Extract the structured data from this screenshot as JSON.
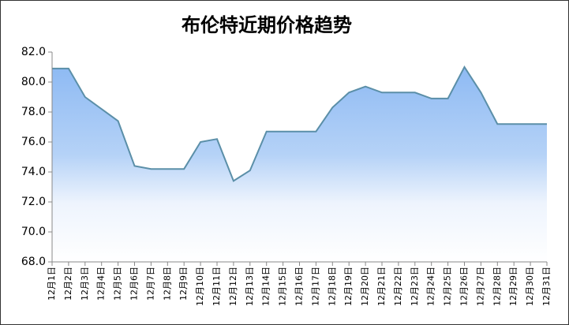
{
  "chart_data": {
    "type": "area",
    "title": "布伦特近期价格趋势",
    "categories": [
      "12月1日",
      "12月2日",
      "12月3日",
      "12月4日",
      "12月5日",
      "12月6日",
      "12月7日",
      "12月8日",
      "12月9日",
      "12月10日",
      "12月11日",
      "12月12日",
      "12月13日",
      "12月14日",
      "12月15日",
      "12月16日",
      "12月17日",
      "12月18日",
      "12月19日",
      "12月20日",
      "12月21日",
      "12月22日",
      "12月23日",
      "12月24日",
      "12月25日",
      "12月26日",
      "12月27日",
      "12月28日",
      "12月29日",
      "12月30日",
      "12月31日"
    ],
    "series": [
      {
        "color": "#5b8fa8",
        "values": [
          80.9,
          80.9,
          79.0,
          78.2,
          77.4,
          74.4,
          74.2,
          74.2,
          74.2,
          76.0,
          76.2,
          73.4,
          74.1,
          76.7,
          76.7,
          76.7,
          76.7,
          78.3,
          79.3,
          79.7,
          79.3,
          79.3,
          79.3,
          78.9,
          78.9,
          81.0,
          79.3,
          77.2,
          77.2,
          77.2,
          77.2
        ]
      }
    ],
    "ylim": [
      68,
      82
    ],
    "yticks": [
      {
        "value": 68,
        "label": "68.0"
      },
      {
        "value": 70,
        "label": "70.0"
      },
      {
        "value": 72,
        "label": "72.0"
      },
      {
        "value": 74,
        "label": "74.0"
      },
      {
        "value": 76,
        "label": "76.0"
      },
      {
        "value": 78,
        "label": "78.0"
      },
      {
        "value": 80,
        "label": "80.0"
      },
      {
        "value": 82,
        "label": "82.0"
      }
    ],
    "grid": false
  }
}
